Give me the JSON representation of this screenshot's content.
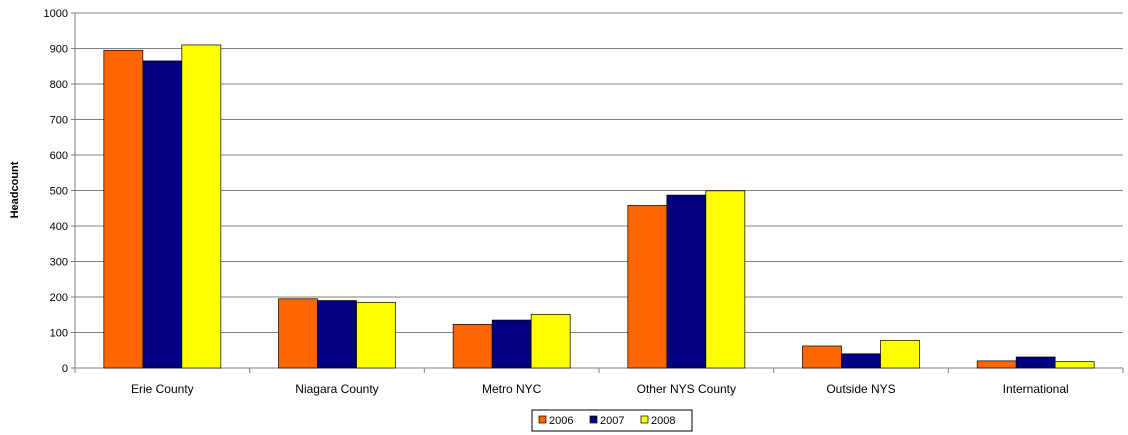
{
  "chart_data": {
    "type": "bar",
    "title": "",
    "xlabel": "",
    "ylabel": "Headcount",
    "ylim": [
      0,
      1000
    ],
    "yticks": [
      "0",
      "100",
      "200",
      "300",
      "400",
      "500",
      "600",
      "700",
      "800",
      "900",
      "1000"
    ],
    "categories": [
      "Erie County",
      "Niagara County",
      "Metro NYC",
      "Other NYS County",
      "Outside NYS",
      "International"
    ],
    "series": [
      {
        "name": "2006",
        "color": "#ff6600",
        "values": [
          895,
          195,
          123,
          458,
          62,
          20
        ]
      },
      {
        "name": "2007",
        "color": "#000080",
        "values": [
          865,
          190,
          135,
          487,
          40,
          31
        ]
      },
      {
        "name": "2008",
        "color": "#ffff00",
        "values": [
          910,
          185,
          151,
          499,
          78,
          18
        ]
      }
    ],
    "grid": true,
    "legend_position": "bottom-center"
  }
}
